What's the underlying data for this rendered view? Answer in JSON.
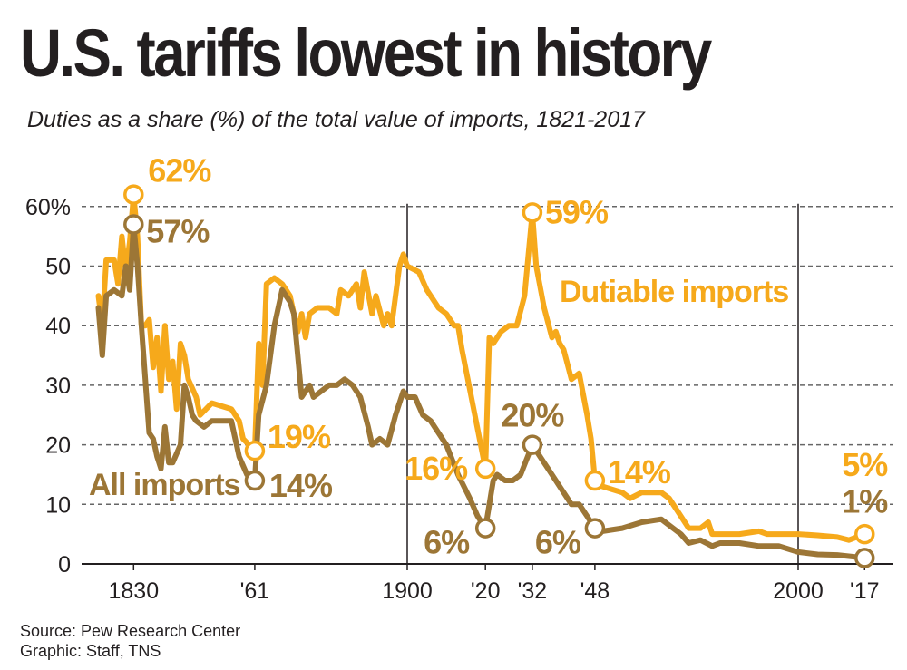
{
  "header": {
    "title": "U.S. tariffs lowest in history",
    "subtitle": "Duties as a share (%) of the total value of imports, 1821-2017"
  },
  "footer": {
    "source": "Source: Pew Research Center",
    "credit": "Graphic: Staff, TNS"
  },
  "colors": {
    "dutiable": "#f6a91b",
    "all": "#9c7636",
    "grid": "#666666"
  },
  "chart_data": {
    "type": "line",
    "title": "U.S. tariffs lowest in history",
    "ylim": [
      0,
      60
    ],
    "xlim": [
      1821,
      2017
    ],
    "grid": true,
    "y_ticks": [
      {
        "value": 0,
        "label": "0"
      },
      {
        "value": 10,
        "label": "10"
      },
      {
        "value": 20,
        "label": "20"
      },
      {
        "value": 30,
        "label": "30"
      },
      {
        "value": 40,
        "label": "40"
      },
      {
        "value": 50,
        "label": "50"
      },
      {
        "value": 60,
        "label": "60%"
      }
    ],
    "x_ticks": [
      {
        "value": 1830,
        "label": "1830"
      },
      {
        "value": 1861,
        "label": "'61"
      },
      {
        "value": 1900,
        "label": "1900"
      },
      {
        "value": 1920,
        "label": "'20"
      },
      {
        "value": 1932,
        "label": "'32"
      },
      {
        "value": 1948,
        "label": "'48"
      },
      {
        "value": 2000,
        "label": "2000"
      },
      {
        "value": 2017,
        "label": "'17"
      }
    ],
    "reference_lines": [
      1900,
      2000
    ],
    "series": [
      {
        "name": "Dutiable imports",
        "color": "#f6a91b",
        "points": [
          [
            1821,
            45
          ],
          [
            1822,
            40
          ],
          [
            1823,
            51
          ],
          [
            1825,
            51
          ],
          [
            1826,
            47
          ],
          [
            1827,
            55
          ],
          [
            1828,
            49
          ],
          [
            1829,
            54
          ],
          [
            1830,
            62
          ],
          [
            1831,
            55
          ],
          [
            1832,
            40
          ],
          [
            1833,
            40
          ],
          [
            1834,
            41
          ],
          [
            1835,
            33
          ],
          [
            1836,
            38
          ],
          [
            1837,
            29
          ],
          [
            1838,
            40
          ],
          [
            1839,
            31
          ],
          [
            1840,
            34
          ],
          [
            1841,
            26
          ],
          [
            1842,
            37
          ],
          [
            1843,
            35
          ],
          [
            1844,
            31
          ],
          [
            1846,
            28
          ],
          [
            1847,
            25
          ],
          [
            1850,
            27
          ],
          [
            1855,
            26
          ],
          [
            1857,
            24
          ],
          [
            1858,
            21
          ],
          [
            1861,
            19
          ],
          [
            1862,
            37
          ],
          [
            1863,
            30
          ],
          [
            1864,
            47
          ],
          [
            1866,
            48
          ],
          [
            1868,
            47
          ],
          [
            1870,
            45
          ],
          [
            1872,
            39
          ],
          [
            1873,
            42
          ],
          [
            1874,
            38
          ],
          [
            1875,
            42
          ],
          [
            1877,
            43
          ],
          [
            1880,
            43
          ],
          [
            1882,
            42
          ],
          [
            1883,
            46
          ],
          [
            1885,
            45
          ],
          [
            1887,
            47
          ],
          [
            1888,
            43
          ],
          [
            1889,
            49
          ],
          [
            1891,
            42
          ],
          [
            1892,
            45
          ],
          [
            1894,
            40
          ],
          [
            1895,
            42
          ],
          [
            1896,
            40
          ],
          [
            1897,
            45
          ],
          [
            1898,
            50
          ],
          [
            1899,
            52
          ],
          [
            1900,
            50
          ],
          [
            1903,
            49
          ],
          [
            1905,
            46
          ],
          [
            1908,
            43
          ],
          [
            1910,
            42
          ],
          [
            1912,
            40
          ],
          [
            1913,
            40
          ],
          [
            1914,
            36
          ],
          [
            1920,
            16
          ],
          [
            1921,
            38
          ],
          [
            1922,
            37
          ],
          [
            1924,
            39
          ],
          [
            1926,
            40
          ],
          [
            1928,
            40
          ],
          [
            1930,
            45
          ],
          [
            1932,
            59
          ],
          [
            1933,
            50
          ],
          [
            1935,
            43
          ],
          [
            1937,
            38
          ],
          [
            1938,
            39
          ],
          [
            1939,
            37
          ],
          [
            1940,
            36
          ],
          [
            1942,
            31
          ],
          [
            1944,
            32
          ],
          [
            1946,
            25
          ],
          [
            1947,
            21
          ],
          [
            1948,
            14
          ],
          [
            1950,
            13
          ],
          [
            1955,
            12
          ],
          [
            1957,
            11
          ],
          [
            1960,
            12
          ],
          [
            1965,
            12
          ],
          [
            1967,
            11
          ],
          [
            1970,
            8
          ],
          [
            1972,
            6
          ],
          [
            1975,
            6
          ],
          [
            1977,
            7
          ],
          [
            1978,
            5
          ],
          [
            1980,
            5
          ],
          [
            1985,
            5
          ],
          [
            1990,
            5.5
          ],
          [
            1992,
            5
          ],
          [
            1995,
            5
          ],
          [
            2000,
            5
          ],
          [
            2005,
            4.8
          ],
          [
            2010,
            4.5
          ],
          [
            2013,
            4
          ],
          [
            2017,
            5
          ]
        ],
        "annotations": [
          {
            "x": 1830,
            "y": 62,
            "label": "62%"
          },
          {
            "x": 1861,
            "y": 19,
            "label": "19%"
          },
          {
            "x": 1920,
            "y": 16,
            "label": "16%"
          },
          {
            "x": 1932,
            "y": 59,
            "label": "59%"
          },
          {
            "x": 1948,
            "y": 14,
            "label": "14%"
          },
          {
            "x": 2017,
            "y": 5,
            "label": "5%"
          }
        ]
      },
      {
        "name": "All imports",
        "color": "#9c7636",
        "points": [
          [
            1821,
            43
          ],
          [
            1822,
            35
          ],
          [
            1823,
            45
          ],
          [
            1825,
            46
          ],
          [
            1827,
            45
          ],
          [
            1828,
            50
          ],
          [
            1829,
            46
          ],
          [
            1830,
            57
          ],
          [
            1831,
            50
          ],
          [
            1832,
            40
          ],
          [
            1834,
            22
          ],
          [
            1835,
            21
          ],
          [
            1836,
            18
          ],
          [
            1837,
            16
          ],
          [
            1838,
            23
          ],
          [
            1839,
            17
          ],
          [
            1840,
            17
          ],
          [
            1842,
            20
          ],
          [
            1843,
            30
          ],
          [
            1844,
            28
          ],
          [
            1845,
            25
          ],
          [
            1846,
            24
          ],
          [
            1848,
            23
          ],
          [
            1850,
            24
          ],
          [
            1855,
            24
          ],
          [
            1857,
            18
          ],
          [
            1859,
            15
          ],
          [
            1861,
            14
          ],
          [
            1862,
            25
          ],
          [
            1864,
            30
          ],
          [
            1866,
            40
          ],
          [
            1868,
            46
          ],
          [
            1870,
            44
          ],
          [
            1871,
            42
          ],
          [
            1873,
            28
          ],
          [
            1875,
            30
          ],
          [
            1876,
            28
          ],
          [
            1878,
            29
          ],
          [
            1880,
            30
          ],
          [
            1882,
            30
          ],
          [
            1884,
            31
          ],
          [
            1886,
            30
          ],
          [
            1888,
            28
          ],
          [
            1890,
            23
          ],
          [
            1891,
            20
          ],
          [
            1893,
            21
          ],
          [
            1895,
            20
          ],
          [
            1897,
            25
          ],
          [
            1899,
            29
          ],
          [
            1900,
            28
          ],
          [
            1902,
            28
          ],
          [
            1904,
            25
          ],
          [
            1906,
            24
          ],
          [
            1908,
            22
          ],
          [
            1910,
            20
          ],
          [
            1913,
            15
          ],
          [
            1916,
            11
          ],
          [
            1918,
            8
          ],
          [
            1920,
            6
          ],
          [
            1922,
            14
          ],
          [
            1923,
            15
          ],
          [
            1925,
            14
          ],
          [
            1927,
            14
          ],
          [
            1929,
            15
          ],
          [
            1932,
            20
          ],
          [
            1934,
            18
          ],
          [
            1936,
            16
          ],
          [
            1938,
            14
          ],
          [
            1940,
            12
          ],
          [
            1942,
            10
          ],
          [
            1944,
            10
          ],
          [
            1946,
            8
          ],
          [
            1948,
            6
          ],
          [
            1950,
            5.5
          ],
          [
            1955,
            6
          ],
          [
            1960,
            7
          ],
          [
            1965,
            7.5
          ],
          [
            1968,
            6
          ],
          [
            1970,
            5
          ],
          [
            1972,
            3.5
          ],
          [
            1975,
            4
          ],
          [
            1978,
            3
          ],
          [
            1980,
            3.5
          ],
          [
            1985,
            3.5
          ],
          [
            1990,
            3
          ],
          [
            1995,
            3
          ],
          [
            2000,
            2
          ],
          [
            2005,
            1.6
          ],
          [
            2010,
            1.5
          ],
          [
            2017,
            1
          ]
        ],
        "annotations": [
          {
            "x": 1830,
            "y": 57,
            "label": "57%"
          },
          {
            "x": 1861,
            "y": 14,
            "label": "14%"
          },
          {
            "x": 1920,
            "y": 6,
            "label": "6%"
          },
          {
            "x": 1932,
            "y": 20,
            "label": "20%"
          },
          {
            "x": 1948,
            "y": 6,
            "label": "6%"
          },
          {
            "x": 2017,
            "y": 1,
            "label": "1%"
          }
        ]
      }
    ]
  }
}
